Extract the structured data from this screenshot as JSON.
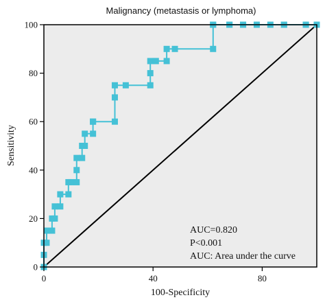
{
  "chart_data": {
    "type": "line",
    "title": "Malignancy (metastasis or lymphoma)",
    "xlabel": "100-Specificity",
    "ylabel": "Sensitivity",
    "xlim": [
      0,
      100
    ],
    "ylim": [
      0,
      100
    ],
    "xticks": [
      0,
      40,
      80
    ],
    "yticks": [
      0,
      20,
      40,
      60,
      80,
      100
    ],
    "grid": false,
    "colors": {
      "roc": "#45c1d6",
      "reference": "#000000",
      "plot_bg": "#ececec"
    },
    "series": [
      {
        "kind": "roc-curve",
        "x": [
          0,
          0,
          0,
          1,
          1,
          3,
          3,
          4,
          4,
          6,
          6,
          9,
          9,
          10,
          12,
          12,
          12,
          14,
          14,
          15,
          15,
          18,
          18,
          18,
          26,
          26,
          26,
          30,
          39,
          39,
          39,
          41,
          41,
          45,
          45,
          48,
          62,
          62,
          62,
          68,
          68,
          73,
          73,
          78,
          83,
          88,
          88,
          96,
          96,
          100
        ],
        "y": [
          0,
          5,
          10,
          10,
          15,
          15,
          20,
          20,
          25,
          25,
          30,
          30,
          35,
          35,
          35,
          40,
          45,
          45,
          50,
          50,
          55,
          55,
          60,
          60,
          60,
          70,
          75,
          75,
          75,
          80,
          85,
          85,
          85,
          85,
          90,
          90,
          90,
          100,
          100,
          100,
          100,
          100,
          100,
          100,
          100,
          100,
          100,
          100,
          100,
          100
        ]
      },
      {
        "kind": "reference-line",
        "x": [
          0,
          100
        ],
        "y": [
          0,
          100
        ]
      }
    ],
    "annotations": [
      "AUC=0.820",
      "P<0.001",
      "AUC: Area under the curve"
    ]
  }
}
